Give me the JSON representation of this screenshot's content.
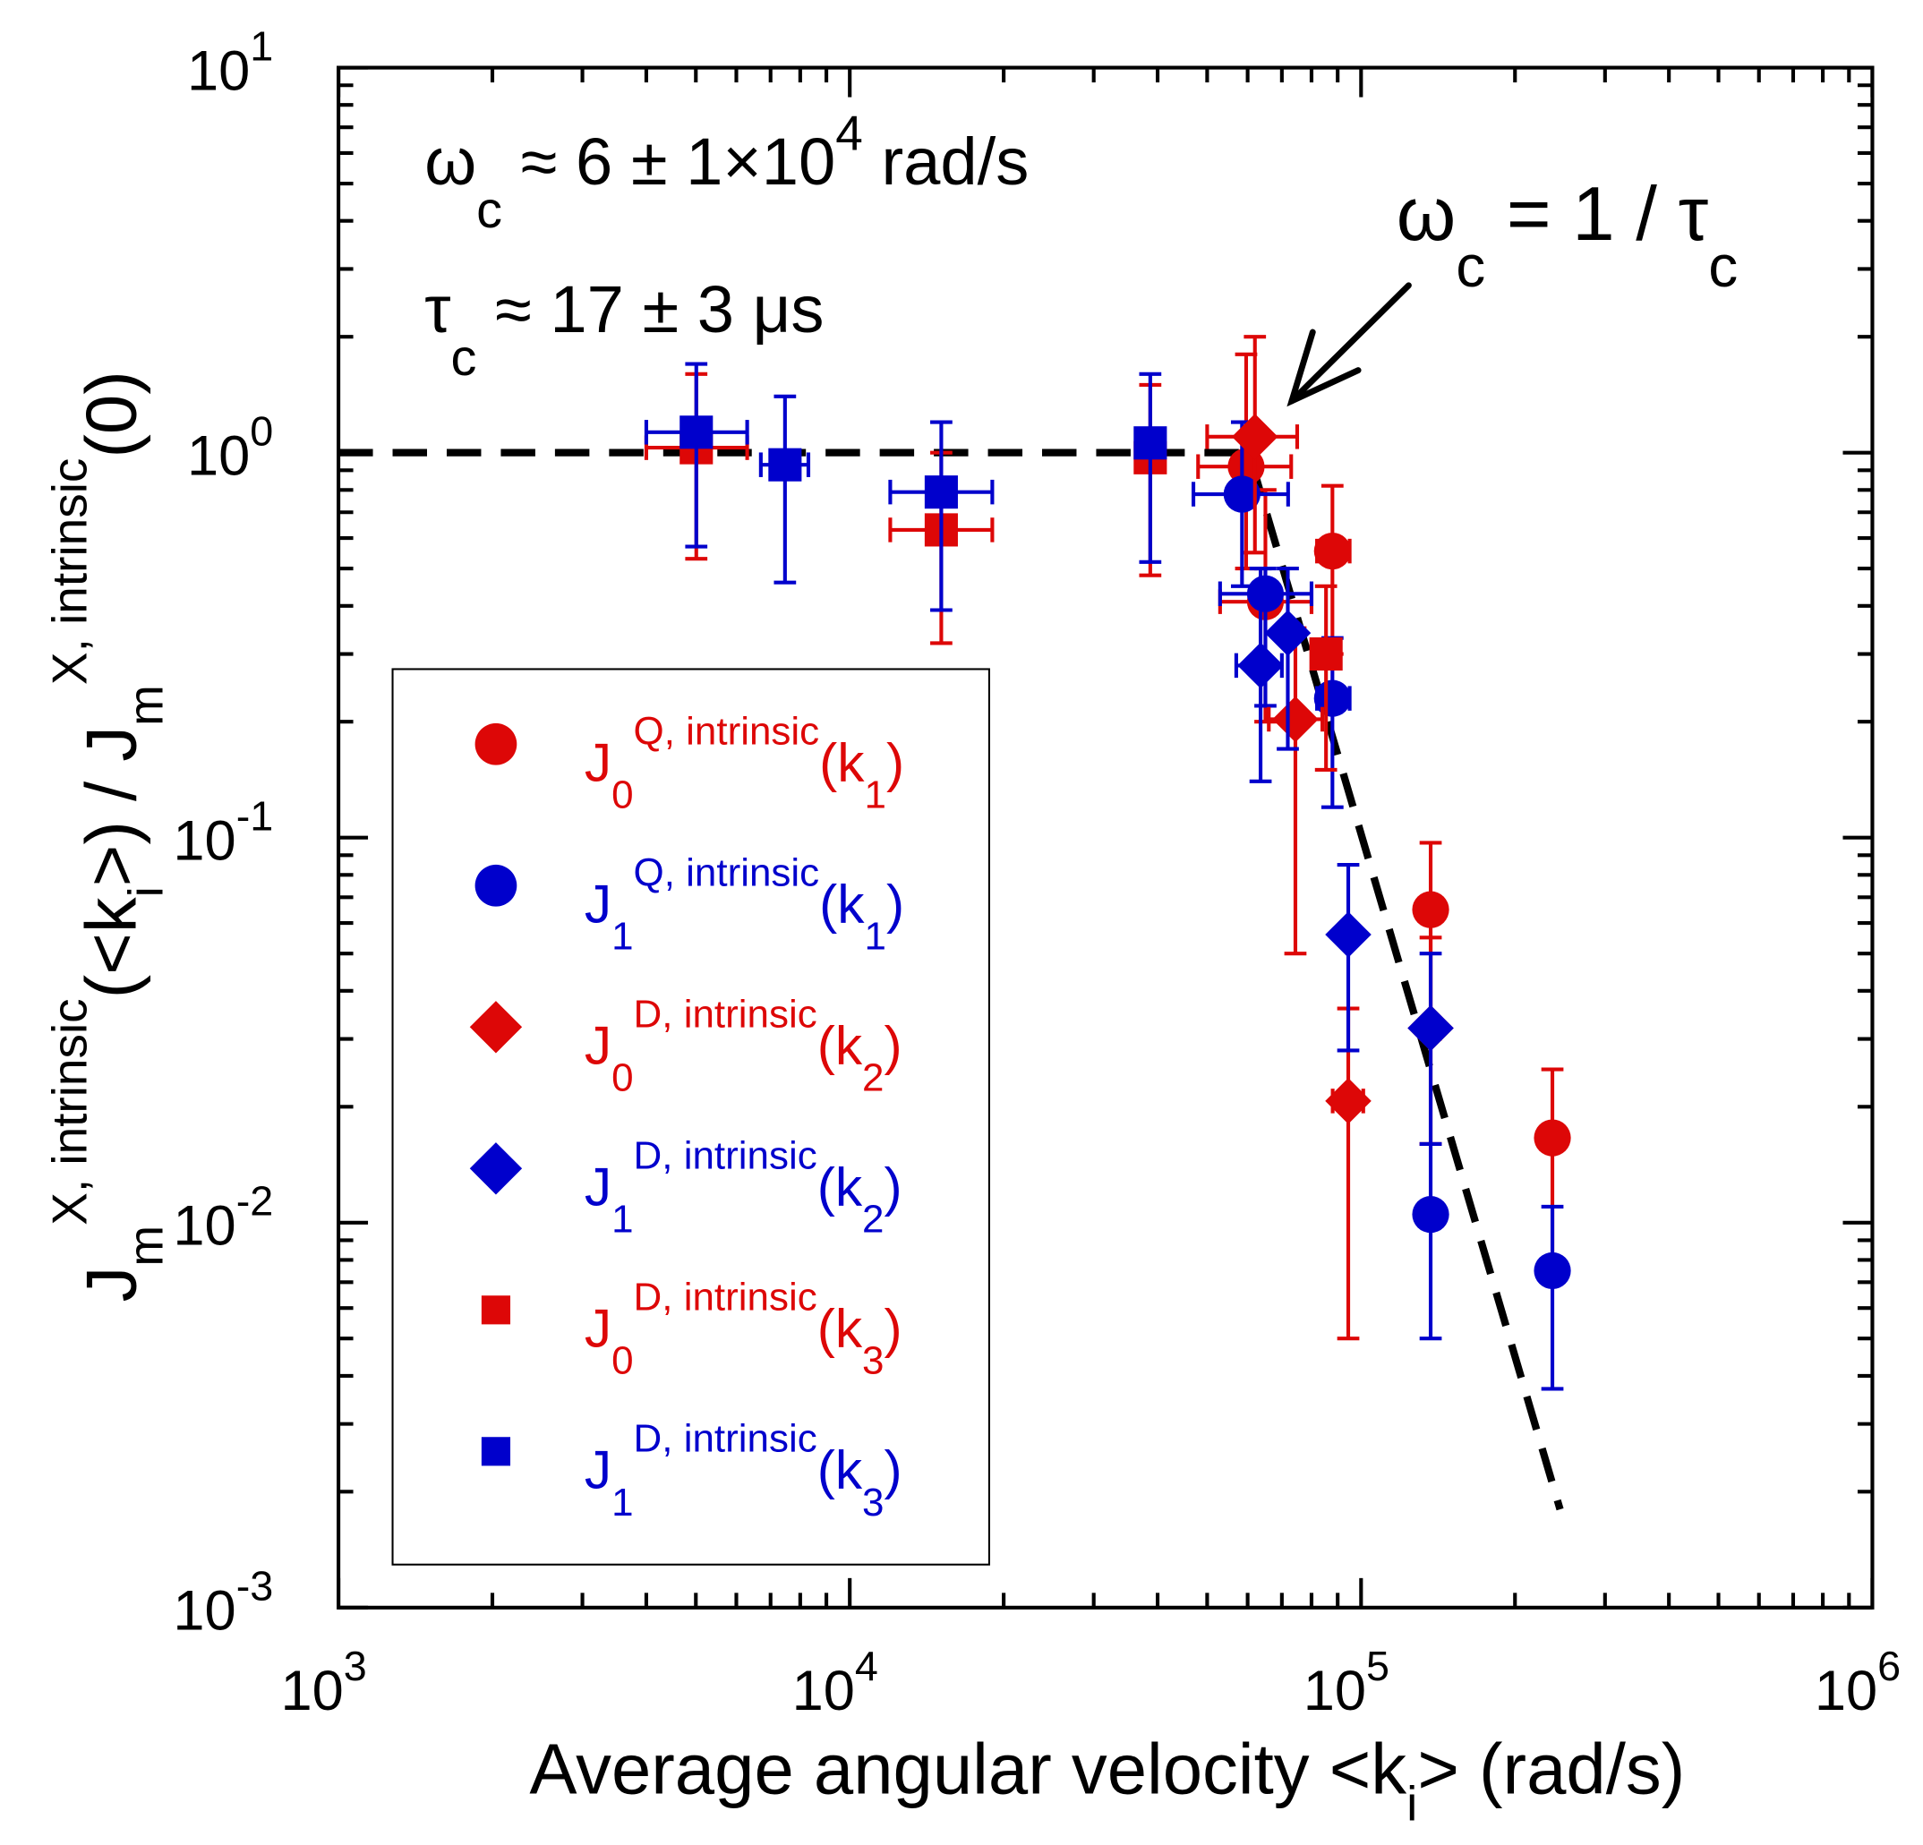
{
  "chart_data": {
    "type": "scatter",
    "xscale": "log",
    "yscale": "log",
    "xlim": [
      1000,
      1000000
    ],
    "ylim": [
      0.001,
      10
    ],
    "x_ticks": [
      {
        "base": "10",
        "exp": "3"
      },
      {
        "base": "10",
        "exp": "4"
      },
      {
        "base": "10",
        "exp": "5"
      },
      {
        "base": "10",
        "exp": "6"
      }
    ],
    "y_ticks": [
      {
        "base": "10",
        "exp": "-3"
      },
      {
        "base": "10",
        "exp": "-2"
      },
      {
        "base": "10",
        "exp": "-1"
      },
      {
        "base": "10",
        "exp": "0"
      },
      {
        "base": "10",
        "exp": "1"
      }
    ],
    "xlabel": {
      "pre": "Average angular velocity  <k",
      "sub": "i",
      "post": ">   (rad/s)"
    },
    "ylabel": {
      "j1": "J",
      "sub1": "m",
      "sup1": "X, intrinsic",
      "mid": "(<k",
      "subi": "i",
      "mid2": ">)  /  J",
      "sub2": "m",
      "sup2": "X, intrinsic",
      "end": "(0)"
    },
    "annotations": {
      "omega": {
        "sym": "ω",
        "sub": "c",
        "text": " ≈ 6 ± 1×10",
        "exp": "4",
        "unit": "  rad/s"
      },
      "tau": {
        "sym": "τ",
        "sub": "c",
        "text": " ≈ 17 ± 3 μs"
      },
      "relation": {
        "sym": "ω",
        "sub": "c",
        "text": " = 1 / τ",
        "sub2": "c"
      }
    },
    "fit_line": {
      "style": "dashed",
      "color": "#000000",
      "points": [
        [
          1000,
          1.0
        ],
        [
          60300,
          1.0
        ],
        [
          245000,
          0.0018
        ]
      ]
    },
    "legend": {
      "placement": "lower-left"
    },
    "series": [
      {
        "name": "J0 Q k1",
        "label": {
          "base": "J",
          "sub": "0",
          "sup": "Q, intrinsic",
          "arg": "(k",
          "argsub": "1",
          "close": ")"
        },
        "color": "#dd0707",
        "marker": "circle",
        "points": [
          {
            "x": 59600,
            "y": 0.92,
            "ylo": 0.5,
            "yhi": 1.8,
            "xlo": 48000,
            "xhi": 73000
          },
          {
            "x": 65000,
            "y": 0.41,
            "ylo": 0.2,
            "yhi": 0.8,
            "xlo": 53000,
            "xhi": 80000
          },
          {
            "x": 87900,
            "y": 0.555,
            "ylo": 0.3,
            "yhi": 0.82,
            "xlo": 82000,
            "xhi": 95000
          },
          {
            "x": 136800,
            "y": 0.065,
            "ylo": 0.03,
            "yhi": 0.097
          },
          {
            "x": 236700,
            "y": 0.0166,
            "ylo": 0.008,
            "yhi": 0.025
          }
        ]
      },
      {
        "name": "J1 Q k1",
        "label": {
          "base": "J",
          "sub": "1",
          "sup": "Q, intrinsic",
          "arg": "(k",
          "argsub": "1",
          "close": ")"
        },
        "color": "#0000cc",
        "marker": "circle",
        "points": [
          {
            "x": 58500,
            "y": 0.78,
            "ylo": 0.45,
            "yhi": 1.2,
            "xlo": 47000,
            "xhi": 72000
          },
          {
            "x": 65000,
            "y": 0.43,
            "ylo": 0.22,
            "yhi": 0.5,
            "xlo": 53000,
            "xhi": 80000
          },
          {
            "x": 87900,
            "y": 0.23,
            "ylo": 0.12,
            "yhi": 0.33,
            "xlo": 82000,
            "xhi": 95000
          },
          {
            "x": 136800,
            "y": 0.0105,
            "ylo": 0.005,
            "yhi": 0.016
          },
          {
            "x": 236700,
            "y": 0.0075,
            "ylo": 0.0037,
            "yhi": 0.011
          }
        ]
      },
      {
        "name": "J0 D k2",
        "label": {
          "base": "J",
          "sub": "0",
          "sup": "D, intrinsic",
          "arg": "(k",
          "argsub": "2",
          "close": ")"
        },
        "color": "#dd0707",
        "marker": "diamond",
        "points": [
          {
            "x": 62000,
            "y": 1.1,
            "ylo": 0.55,
            "yhi": 2.0,
            "xlo": 50000,
            "xhi": 75000
          },
          {
            "x": 74400,
            "y": 0.203,
            "ylo": 0.05,
            "yhi": 0.35,
            "xlo": 66000,
            "xhi": 84000
          },
          {
            "x": 94400,
            "y": 0.0207,
            "ylo": 0.005,
            "yhi": 0.036,
            "xlo": 88000,
            "xhi": 101000
          },
          {
            "x": 136800,
            "y": 0.032,
            "ylo": 0.016,
            "yhi": 0.055
          }
        ]
      },
      {
        "name": "J1 D k2",
        "label": {
          "base": "J",
          "sub": "1",
          "sup": "D, intrinsic",
          "arg": "(k",
          "argsub": "2",
          "close": ")"
        },
        "color": "#0000cc",
        "marker": "diamond",
        "points": [
          {
            "x": 63600,
            "y": 0.28,
            "ylo": 0.14,
            "yhi": 0.5,
            "xlo": 57000,
            "xhi": 70000
          },
          {
            "x": 71900,
            "y": 0.34,
            "ylo": 0.17,
            "yhi": 0.5
          },
          {
            "x": 94400,
            "y": 0.056,
            "ylo": 0.028,
            "yhi": 0.085
          },
          {
            "x": 136800,
            "y": 0.032,
            "ylo": 0.016,
            "yhi": 0.05
          }
        ]
      },
      {
        "name": "J0 D k3",
        "label": {
          "base": "J",
          "sub": "0",
          "sup": "D, intrinsic",
          "arg": "(k",
          "argsub": "3",
          "close": ")"
        },
        "color": "#dd0707",
        "marker": "square",
        "points": [
          {
            "x": 5010,
            "y": 1.03,
            "ylo": 0.53,
            "yhi": 1.6,
            "xlo": 4000,
            "xhi": 6300
          },
          {
            "x": 15100,
            "y": 0.63,
            "ylo": 0.32,
            "yhi": 1.0,
            "xlo": 12000,
            "xhi": 19000
          },
          {
            "x": 38700,
            "y": 0.97,
            "ylo": 0.48,
            "yhi": 1.5
          },
          {
            "x": 85400,
            "y": 0.3,
            "ylo": 0.15,
            "yhi": 0.45
          }
        ]
      },
      {
        "name": "J1 D k3",
        "label": {
          "base": "J",
          "sub": "1",
          "sup": "D, intrinsic",
          "arg": "(k",
          "argsub": "3",
          "close": ")"
        },
        "color": "#0000cc",
        "marker": "square",
        "points": [
          {
            "x": 5010,
            "y": 1.13,
            "ylo": 0.57,
            "yhi": 1.7,
            "xlo": 4000,
            "xhi": 6300
          },
          {
            "x": 7470,
            "y": 0.93,
            "ylo": 0.46,
            "yhi": 1.4,
            "xlo": 6700,
            "xhi": 8300
          },
          {
            "x": 15100,
            "y": 0.79,
            "ylo": 0.39,
            "yhi": 1.2,
            "xlo": 12000,
            "xhi": 19000
          },
          {
            "x": 38700,
            "y": 1.06,
            "ylo": 0.52,
            "yhi": 1.6
          }
        ]
      }
    ]
  }
}
